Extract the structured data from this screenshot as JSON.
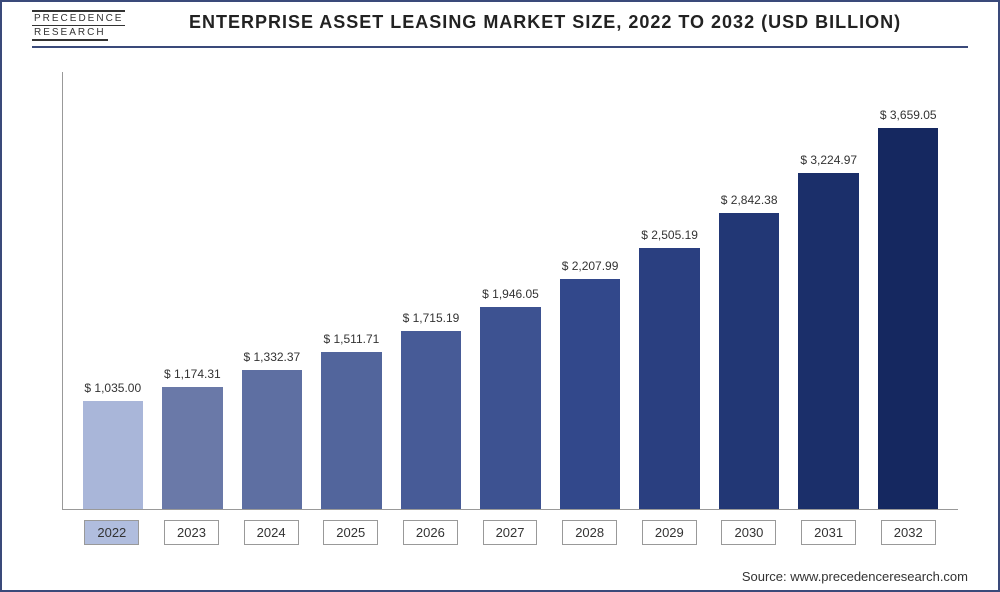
{
  "logo": {
    "line1": "PRECEDENCE",
    "line2": "RESEARCH"
  },
  "title": "ENTERPRISE ASSET LEASING MARKET SIZE, 2022 TO 2032 (USD BILLION)",
  "source": "Source: www.precedenceresearch.com",
  "chart": {
    "type": "bar",
    "categories": [
      "2022",
      "2023",
      "2024",
      "2025",
      "2026",
      "2027",
      "2028",
      "2029",
      "2030",
      "2031",
      "2032"
    ],
    "values": [
      1035.0,
      1174.31,
      1332.37,
      1511.71,
      1715.19,
      1946.05,
      2207.99,
      2505.19,
      2842.38,
      3224.97,
      3659.05
    ],
    "labels": [
      "$ 1,035.00",
      "$ 1,174.31",
      "$ 1,332.37",
      "$ 1,511.71",
      "$ 1,715.19",
      "$ 1,946.05",
      "$ 2,207.99",
      "$ 2,505.19",
      "$ 2,842.38",
      "$ 3,224.97",
      "$ 3,659.05"
    ],
    "bar_colors": [
      "#a9b6d9",
      "#6a79a8",
      "#5e6fa2",
      "#52659c",
      "#475b97",
      "#3d5291",
      "#32488b",
      "#2a3f80",
      "#223775",
      "#1b2f6a",
      "#152860"
    ],
    "highlight_index": 0,
    "ylim": [
      0,
      4200
    ],
    "background_color": "#ffffff",
    "axis_color": "#999999",
    "border_color": "#3a4a7a",
    "title_fontsize": 18,
    "label_fontsize": 12,
    "tick_fontsize": 13,
    "bar_width_pct": 76,
    "label_prefix": "$ ",
    "x_tick_highlight_bg": "#b0bdde"
  }
}
